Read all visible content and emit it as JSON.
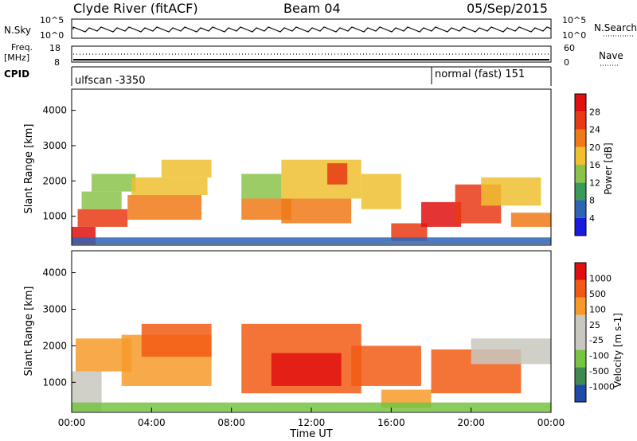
{
  "header": {
    "station": "Clyde River (fitACF)",
    "beam": "Beam 04",
    "date": "05/Sep/2015"
  },
  "noise_panel": {
    "left_label": "N.Sky",
    "right_label": "N.Search",
    "tick_top": "10^5",
    "tick_bottom": "10^0",
    "right_tick_top": "10^5",
    "right_tick_bottom": "10^0"
  },
  "freq_panel": {
    "left_label_line1": "Freq.",
    "left_label_line2": "[MHz]",
    "right_label": "Nave",
    "tick_top": "18",
    "tick_bottom": "8",
    "right_tick_top": "60",
    "right_tick_bottom": "0"
  },
  "cpid_panel": {
    "label": "CPID",
    "mode1": "ulfscan -3350",
    "mode2": "normal (fast) 151"
  },
  "colors": {
    "power": [
      "#1a1ae0",
      "#2e64b4",
      "#3a9a5a",
      "#8bc34a",
      "#f0c030",
      "#f07a18",
      "#e83a14",
      "#e01010"
    ],
    "velocity": [
      "#e01010",
      "#f25a14",
      "#f79a2a",
      "#c8c8c0",
      "#c8c8c0",
      "#76c442",
      "#3f8a4e",
      "#1f4aa8"
    ]
  },
  "chart_data": [
    {
      "type": "heatmap",
      "panel": "power",
      "ylabel": "Slant Range [km]",
      "ylim": [
        180,
        4600
      ],
      "yticks": [
        "1000",
        "2000",
        "3000",
        "4000"
      ],
      "xlim_hours": [
        0,
        24
      ],
      "colorbar": {
        "label": "Power [dB]",
        "ticks": [
          "4",
          "8",
          "12",
          "16",
          "20",
          "24",
          "28"
        ]
      },
      "regions": [
        {
          "t0": 0.0,
          "t1": 1.2,
          "r0": 200,
          "r1": 700,
          "lvl": 7
        },
        {
          "t0": 0.3,
          "t1": 2.8,
          "r0": 700,
          "r1": 1200,
          "lvl": 6
        },
        {
          "t0": 0.5,
          "t1": 2.5,
          "r0": 1200,
          "r1": 1700,
          "lvl": 3
        },
        {
          "t0": 1.0,
          "t1": 3.2,
          "r0": 1700,
          "r1": 2200,
          "lvl": 3
        },
        {
          "t0": 2.8,
          "t1": 6.5,
          "r0": 900,
          "r1": 1600,
          "lvl": 5
        },
        {
          "t0": 3.0,
          "t1": 6.8,
          "r0": 1600,
          "r1": 2100,
          "lvl": 4
        },
        {
          "t0": 4.5,
          "t1": 7.0,
          "r0": 2100,
          "r1": 2600,
          "lvl": 4
        },
        {
          "t0": 8.5,
          "t1": 11.0,
          "r0": 900,
          "r1": 1500,
          "lvl": 5
        },
        {
          "t0": 8.5,
          "t1": 10.5,
          "r0": 1500,
          "r1": 2200,
          "lvl": 3
        },
        {
          "t0": 10.5,
          "t1": 14.0,
          "r0": 800,
          "r1": 1500,
          "lvl": 5
        },
        {
          "t0": 10.5,
          "t1": 14.5,
          "r0": 1500,
          "r1": 2600,
          "lvl": 4
        },
        {
          "t0": 12.8,
          "t1": 13.8,
          "r0": 1900,
          "r1": 2500,
          "lvl": 6
        },
        {
          "t0": 14.5,
          "t1": 16.5,
          "r0": 1200,
          "r1": 2200,
          "lvl": 4
        },
        {
          "t0": 16.0,
          "t1": 17.8,
          "r0": 300,
          "r1": 800,
          "lvl": 6
        },
        {
          "t0": 17.5,
          "t1": 19.5,
          "r0": 700,
          "r1": 1400,
          "lvl": 7
        },
        {
          "t0": 19.2,
          "t1": 21.5,
          "r0": 800,
          "r1": 1900,
          "lvl": 6
        },
        {
          "t0": 20.5,
          "t1": 23.5,
          "r0": 1300,
          "r1": 2100,
          "lvl": 4
        },
        {
          "t0": 22.0,
          "t1": 24.0,
          "r0": 700,
          "r1": 1100,
          "lvl": 5
        },
        {
          "t0": 0.0,
          "t1": 24.0,
          "r0": 200,
          "r1": 400,
          "lvl": 1
        }
      ]
    },
    {
      "type": "heatmap",
      "panel": "velocity",
      "ylabel": "Slant Range [km]",
      "ylim": [
        180,
        4600
      ],
      "yticks": [
        "1000",
        "2000",
        "3000",
        "4000"
      ],
      "xlim_hours": [
        0,
        24
      ],
      "xticks": [
        "00:00",
        "04:00",
        "08:00",
        "12:00",
        "16:00",
        "20:00",
        "00:00"
      ],
      "xlabel": "Time UT",
      "colorbar": {
        "label": "Velocity [m s-1]",
        "ticks": [
          "1000",
          "500",
          "100",
          "25",
          "-25",
          "-100",
          "-500",
          "-1000"
        ]
      },
      "regions": [
        {
          "t0": 0.0,
          "t1": 1.5,
          "r0": 200,
          "r1": 1300,
          "lvl": 3
        },
        {
          "t0": 0.2,
          "t1": 3.0,
          "r0": 1300,
          "r1": 2200,
          "lvl": 2
        },
        {
          "t0": 2.5,
          "t1": 7.0,
          "r0": 900,
          "r1": 2300,
          "lvl": 2
        },
        {
          "t0": 3.5,
          "t1": 7.0,
          "r0": 1700,
          "r1": 2600,
          "lvl": 1
        },
        {
          "t0": 8.5,
          "t1": 14.5,
          "r0": 700,
          "r1": 2600,
          "lvl": 1
        },
        {
          "t0": 10.0,
          "t1": 13.5,
          "r0": 900,
          "r1": 1800,
          "lvl": 0
        },
        {
          "t0": 14.0,
          "t1": 17.5,
          "r0": 900,
          "r1": 2000,
          "lvl": 1
        },
        {
          "t0": 15.5,
          "t1": 18.0,
          "r0": 300,
          "r1": 800,
          "lvl": 2
        },
        {
          "t0": 18.0,
          "t1": 22.5,
          "r0": 700,
          "r1": 1900,
          "lvl": 1
        },
        {
          "t0": 20.0,
          "t1": 24.0,
          "r0": 1500,
          "r1": 2200,
          "lvl": 3
        },
        {
          "t0": 0.0,
          "t1": 24.0,
          "r0": 200,
          "r1": 450,
          "lvl": 5
        }
      ]
    }
  ]
}
